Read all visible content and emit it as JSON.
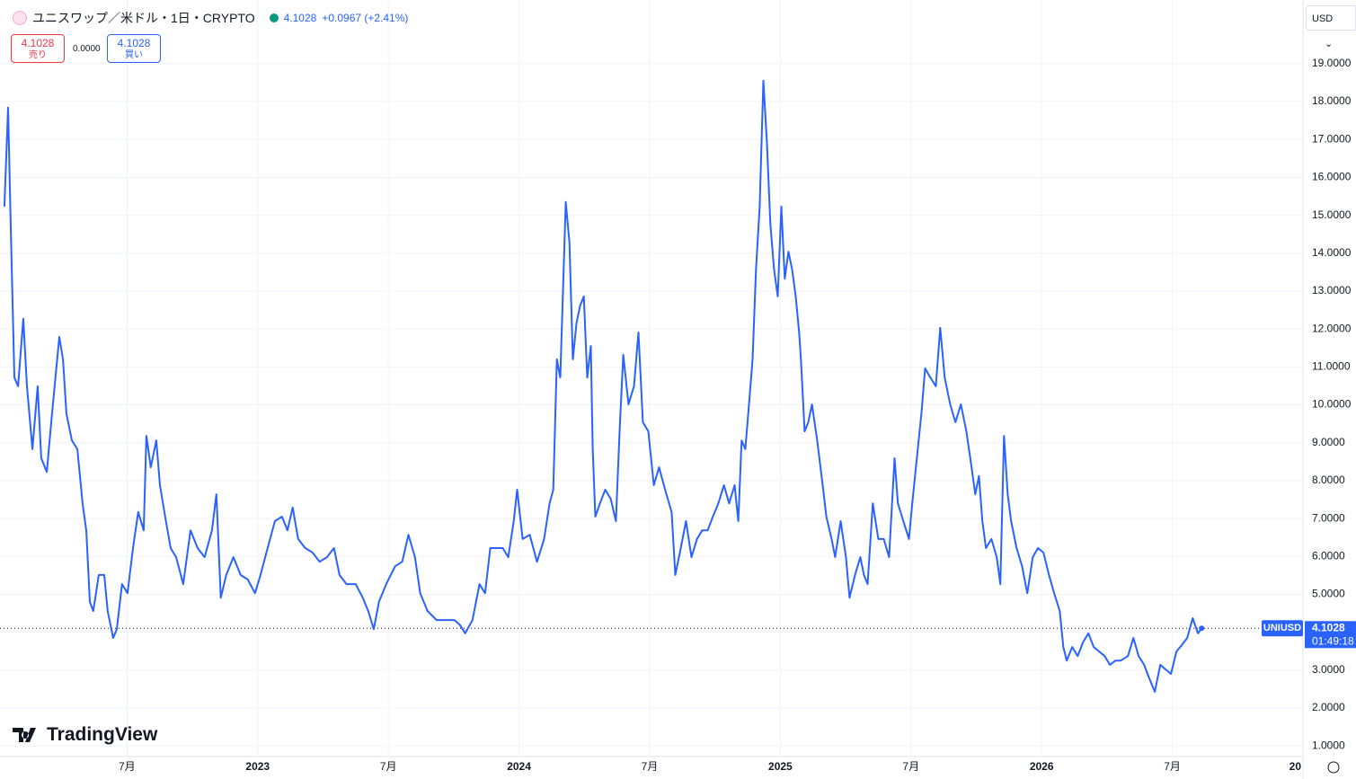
{
  "header": {
    "title": "ユニスワップ／米ドル・1日・CRYPTO",
    "price": 4.1028,
    "change": "+0.0967 (+2.41%)"
  },
  "sell": {
    "price": 4.1028,
    "label": "売り"
  },
  "spread": "0.0000",
  "buy": {
    "price": 4.1028,
    "label": "買い"
  },
  "currency": "USD",
  "watermark": "TradingView",
  "chart_data": {
    "type": "line",
    "color": "#2962ff",
    "grid": true,
    "xlim": [
      2022.014,
      2027.0
    ],
    "ylim": [
      0.72,
      20.68
    ],
    "xticks": [
      {
        "value": 2022.5,
        "label": "7月"
      },
      2023,
      {
        "value": 2023.5,
        "label": "7月"
      },
      2024,
      {
        "value": 2024.5,
        "label": "7月"
      },
      2025,
      {
        "value": 2025.5,
        "label": "7月"
      },
      2026,
      {
        "value": 2026.5,
        "label": "7月"
      },
      {
        "value": 2027,
        "label": "20"
      }
    ],
    "yticks": [
      {
        "value": 1,
        "label": "1.0000"
      },
      {
        "value": 2,
        "label": "2.0000"
      },
      {
        "value": 3,
        "label": "3.0000"
      },
      {
        "value": 4,
        "label": "4.0000"
      },
      {
        "value": 5,
        "label": "5.0000"
      },
      {
        "value": 6,
        "label": "6.0000"
      },
      {
        "value": 7,
        "label": "7.0000"
      },
      {
        "value": 8,
        "label": "8.0000"
      },
      {
        "value": 9,
        "label": "9.0000"
      },
      {
        "value": 10,
        "label": "10.0000"
      },
      {
        "value": 11,
        "label": "11.0000"
      },
      {
        "value": 12,
        "label": "12.0000"
      },
      {
        "value": 13,
        "label": "13.0000"
      },
      {
        "value": 14,
        "label": "14.0000"
      },
      {
        "value": 15,
        "label": "15.0000"
      },
      {
        "value": 16,
        "label": "16.0000"
      },
      {
        "value": 17,
        "label": "17.0000"
      },
      {
        "value": 18,
        "label": "18.0000"
      },
      {
        "value": 19,
        "label": "19.0000"
      }
    ],
    "price_line": {
      "label": "UNIUSD",
      "value": 4.1028,
      "countdown": "01:49:18"
    },
    "x": [
      2022.031,
      2022.045,
      2022.055,
      2022.069,
      2022.083,
      2022.103,
      2022.117,
      2022.138,
      2022.158,
      2022.172,
      2022.193,
      2022.213,
      2022.241,
      2022.255,
      2022.268,
      2022.289,
      2022.31,
      2022.33,
      2022.344,
      2022.358,
      2022.371,
      2022.392,
      2022.413,
      2022.426,
      2022.447,
      2022.461,
      2022.481,
      2022.502,
      2022.523,
      2022.543,
      2022.564,
      2022.574,
      2022.591,
      2022.612,
      2022.626,
      2022.646,
      2022.667,
      2022.688,
      2022.715,
      2022.743,
      2022.77,
      2022.797,
      2022.825,
      2022.842,
      2022.859,
      2022.88,
      2022.907,
      2022.935,
      2022.962,
      2022.99,
      2023.011,
      2023.038,
      2023.066,
      2023.093,
      2023.114,
      2023.134,
      2023.155,
      2023.182,
      2023.21,
      2023.237,
      2023.265,
      2023.292,
      2023.313,
      2023.34,
      2023.375,
      2023.402,
      2023.423,
      2023.444,
      2023.464,
      2023.492,
      2023.526,
      2023.553,
      2023.577,
      2023.602,
      2023.622,
      2023.65,
      2023.684,
      2023.718,
      2023.753,
      2023.773,
      2023.794,
      2023.822,
      2023.849,
      2023.87,
      2023.89,
      2023.911,
      2023.938,
      2023.959,
      2023.98,
      2023.993,
      2024.014,
      2024.041,
      2024.069,
      2024.096,
      2024.117,
      2024.131,
      2024.145,
      2024.158,
      2024.179,
      2024.193,
      2024.206,
      2024.22,
      2024.234,
      2024.248,
      2024.261,
      2024.275,
      2024.282,
      2024.292,
      2024.31,
      2024.33,
      2024.351,
      2024.371,
      2024.385,
      2024.399,
      2024.419,
      2024.44,
      2024.457,
      2024.474,
      2024.495,
      2024.516,
      2024.536,
      2024.564,
      2024.584,
      2024.598,
      2024.619,
      2024.639,
      2024.66,
      2024.681,
      2024.701,
      2024.722,
      2024.742,
      2024.763,
      2024.784,
      2024.804,
      2024.825,
      2024.839,
      2024.852,
      2024.866,
      2024.88,
      2024.894,
      2024.907,
      2024.921,
      2024.935,
      2024.949,
      2024.962,
      2024.976,
      2024.99,
      2025.004,
      2025.017,
      2025.031,
      2025.045,
      2025.059,
      2025.072,
      2025.079,
      2025.093,
      2025.107,
      2025.121,
      2025.141,
      2025.162,
      2025.176,
      2025.196,
      2025.21,
      2025.231,
      2025.251,
      2025.265,
      2025.286,
      2025.306,
      2025.32,
      2025.334,
      2025.354,
      2025.375,
      2025.396,
      2025.416,
      2025.437,
      2025.45,
      2025.471,
      2025.492,
      2025.505,
      2025.526,
      2025.54,
      2025.554,
      2025.574,
      2025.595,
      2025.612,
      2025.629,
      2025.65,
      2025.67,
      2025.691,
      2025.712,
      2025.732,
      2025.746,
      2025.76,
      2025.773,
      2025.787,
      2025.808,
      2025.828,
      2025.842,
      2025.856,
      2025.87,
      2025.883,
      2025.904,
      2025.925,
      2025.945,
      2025.966,
      2025.986,
      2026.007,
      2026.028,
      2026.048,
      2026.069,
      2026.083,
      2026.096,
      2026.117,
      2026.138,
      2026.158,
      2026.179,
      2026.199,
      2026.22,
      2026.241,
      2026.261,
      2026.282,
      2026.302,
      2026.33,
      2026.351,
      2026.371,
      2026.392,
      2026.412,
      2026.433,
      2026.454,
      2026.474,
      2026.495,
      2026.516,
      2026.536,
      2026.557,
      2026.578,
      2026.598,
      2026.612
    ],
    "values": [
      15.23,
      17.84,
      14.76,
      10.72,
      10.49,
      12.27,
      10.49,
      8.83,
      10.49,
      8.59,
      8.23,
      9.77,
      11.79,
      11.2,
      9.77,
      9.06,
      8.83,
      7.4,
      6.69,
      4.8,
      4.56,
      5.51,
      5.51,
      4.56,
      3.85,
      4.08,
      5.27,
      5.03,
      6.22,
      7.17,
      6.69,
      9.18,
      8.35,
      9.06,
      7.88,
      7.05,
      6.22,
      5.98,
      5.27,
      6.69,
      6.22,
      5.98,
      6.69,
      7.64,
      4.91,
      5.51,
      5.98,
      5.51,
      5.39,
      5.03,
      5.51,
      6.22,
      6.93,
      7.05,
      6.69,
      7.29,
      6.46,
      6.22,
      6.1,
      5.86,
      5.98,
      6.22,
      5.51,
      5.27,
      5.27,
      4.91,
      4.56,
      4.08,
      4.8,
      5.27,
      5.74,
      5.86,
      6.57,
      5.98,
      5.03,
      4.56,
      4.32,
      4.32,
      4.32,
      4.2,
      3.97,
      4.32,
      5.27,
      5.03,
      6.22,
      6.22,
      6.22,
      5.98,
      6.93,
      7.76,
      6.46,
      6.57,
      5.86,
      6.46,
      7.4,
      7.76,
      11.2,
      10.72,
      15.35,
      14.28,
      11.2,
      12.15,
      12.62,
      12.86,
      10.72,
      11.55,
      8.83,
      7.05,
      7.4,
      7.76,
      7.52,
      6.93,
      9.3,
      11.32,
      10.01,
      10.49,
      11.91,
      9.54,
      9.3,
      7.88,
      8.35,
      7.64,
      7.17,
      5.51,
      6.22,
      6.93,
      5.98,
      6.46,
      6.69,
      6.69,
      7.05,
      7.4,
      7.88,
      7.4,
      7.88,
      6.93,
      9.06,
      8.83,
      10.01,
      11.2,
      13.57,
      15.23,
      18.55,
      16.89,
      14.76,
      13.57,
      12.86,
      15.23,
      13.33,
      14.04,
      13.57,
      12.86,
      11.91,
      11.2,
      9.3,
      9.54,
      10.01,
      9.06,
      7.88,
      7.05,
      6.46,
      5.98,
      6.93,
      5.98,
      4.91,
      5.51,
      5.98,
      5.51,
      5.27,
      7.4,
      6.46,
      6.46,
      5.98,
      8.59,
      7.4,
      6.93,
      6.46,
      7.4,
      8.83,
      9.77,
      10.96,
      10.72,
      10.49,
      12.03,
      10.72,
      10.01,
      9.54,
      10.01,
      9.3,
      8.35,
      7.64,
      8.12,
      6.93,
      6.22,
      6.46,
      5.98,
      5.27,
      9.18,
      7.64,
      6.93,
      6.22,
      5.74,
      5.03,
      5.98,
      6.22,
      6.1,
      5.51,
      5.03,
      4.56,
      3.61,
      3.25,
      3.61,
      3.37,
      3.73,
      3.97,
      3.61,
      3.49,
      3.37,
      3.14,
      3.25,
      3.25,
      3.37,
      3.85,
      3.37,
      3.14,
      2.78,
      2.43,
      3.14,
      3.02,
      2.9,
      3.49,
      3.66,
      3.85,
      4.37,
      3.97,
      4.1028
    ]
  }
}
